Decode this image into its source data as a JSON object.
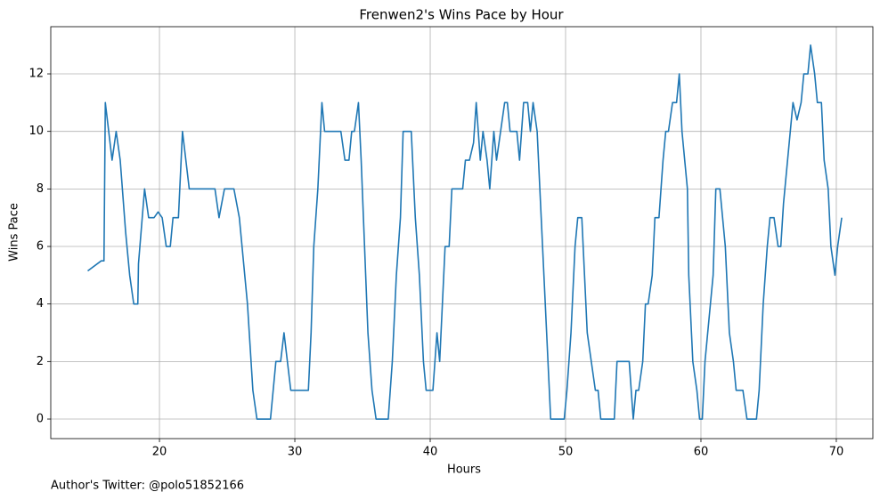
{
  "chart_data": {
    "type": "line",
    "title": "Frenwen2's Wins Pace by Hour",
    "x_label": "Hours",
    "y_label": "Wins Pace",
    "footnote": "Author's Twitter: @polo51852166",
    "x": [
      14.7,
      15.7,
      15.9,
      16.0,
      16.5,
      16.8,
      17.1,
      17.5,
      17.8,
      18.1,
      18.4,
      18.45,
      18.9,
      19.2,
      19.6,
      19.9,
      20.2,
      20.5,
      20.8,
      21.0,
      21.4,
      21.7,
      22.2,
      22.6,
      23.5,
      24.1,
      24.4,
      24.8,
      25.5,
      25.9,
      26.5,
      26.9,
      27.2,
      28.2,
      28.6,
      28.95,
      29.2,
      29.7,
      31.0,
      31.2,
      31.4,
      31.7,
      31.8,
      32.0,
      32.2,
      33.4,
      33.7,
      34.0,
      34.2,
      34.4,
      34.7,
      34.9,
      35.4,
      35.7,
      36.0,
      36.9,
      37.2,
      37.5,
      37.8,
      38.0,
      38.6,
      38.9,
      39.2,
      39.5,
      39.7,
      40.2,
      40.5,
      40.7,
      40.9,
      41.1,
      41.4,
      41.6,
      42.4,
      42.6,
      42.9,
      43.2,
      43.4,
      43.7,
      43.9,
      44.2,
      44.4,
      44.7,
      44.9,
      45.5,
      45.7,
      45.9,
      46.4,
      46.6,
      46.9,
      47.2,
      47.4,
      47.6,
      47.9,
      48.2,
      48.4,
      48.7,
      48.9,
      49.9,
      50.1,
      50.4,
      50.7,
      50.9,
      51.2,
      51.4,
      51.6,
      51.9,
      52.2,
      52.4,
      52.6,
      53.6,
      53.8,
      54.7,
      55.0,
      55.2,
      55.4,
      55.7,
      55.9,
      56.1,
      56.4,
      56.6,
      56.9,
      57.2,
      57.4,
      57.6,
      57.9,
      58.2,
      58.4,
      58.6,
      59.0,
      59.1,
      59.4,
      59.7,
      59.9,
      60.1,
      60.3,
      60.7,
      60.9,
      61.1,
      61.4,
      61.8,
      62.1,
      62.4,
      62.6,
      63.1,
      63.4,
      64.1,
      64.3,
      64.6,
      64.9,
      65.1,
      65.4,
      65.7,
      65.9,
      66.1,
      66.4,
      66.6,
      66.8,
      67.1,
      67.4,
      67.6,
      67.9,
      68.1,
      68.4,
      68.6,
      68.9,
      69.1,
      69.4,
      69.6,
      69.9,
      70.1,
      70.4
    ],
    "values": [
      5.15,
      5.5,
      5.5,
      11,
      9,
      10,
      9,
      6.5,
      5,
      4,
      4,
      5.4,
      8,
      7,
      7,
      7.2,
      7,
      6,
      6,
      7,
      7,
      10,
      8,
      8,
      8,
      8,
      7,
      8,
      8,
      7,
      4,
      1,
      0,
      0,
      2,
      2,
      3,
      1,
      1,
      3,
      6,
      8,
      9,
      11,
      10,
      10,
      9,
      9,
      10,
      10,
      11,
      9,
      3,
      1,
      0,
      0,
      2,
      5,
      7,
      10,
      10,
      7,
      5,
      2,
      1,
      1,
      3,
      2,
      4,
      6,
      6,
      8,
      8,
      9,
      9,
      9.6,
      11,
      9,
      10,
      9,
      8,
      10,
      9,
      11,
      11,
      10,
      10,
      9,
      11,
      11,
      10,
      11,
      10,
      7,
      5,
      2,
      0,
      0,
      1,
      3,
      6,
      7,
      7,
      5,
      3,
      2,
      1,
      1,
      0,
      0,
      2,
      2,
      0,
      1,
      1,
      2,
      4,
      4,
      5,
      7,
      7,
      9,
      10,
      10,
      11,
      11,
      12,
      10,
      8,
      5,
      2,
      1,
      0,
      0,
      2,
      4,
      5,
      8,
      8,
      6,
      3,
      2,
      1,
      1,
      0,
      0,
      1,
      4,
      6,
      7,
      7,
      6,
      6,
      7.5,
      9,
      10,
      11,
      10.4,
      11,
      12,
      12,
      13,
      12,
      11,
      11,
      9,
      8,
      6,
      5,
      6,
      7
    ],
    "color": "#1f77b4",
    "xlim": [
      11.97,
      72.7
    ],
    "xticks": [
      20,
      30,
      40,
      50,
      60,
      70
    ],
    "ylim": [
      -0.68,
      13.64
    ],
    "yticks": [
      0,
      2,
      4,
      6,
      8,
      10,
      12
    ],
    "grid": true
  }
}
